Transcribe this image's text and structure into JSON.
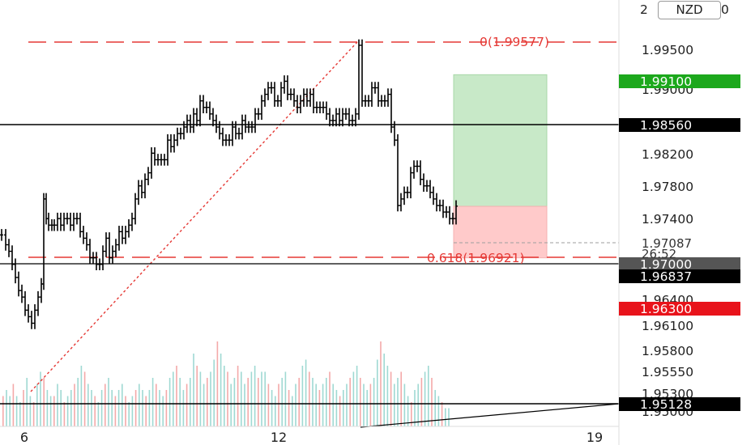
{
  "currency": "NZD",
  "y_axis": {
    "tick_labels": [
      "1.99500",
      "1.99000",
      "1.98200",
      "1.97800",
      "1.97400",
      "1.96400",
      "1.96100",
      "1.95800",
      "1.95550",
      "1.95300",
      "1.95000"
    ],
    "top_fragment_left": "2",
    "top_fragment_right": "0"
  },
  "x_axis": {
    "tick_labels": [
      "6",
      "12",
      "19"
    ]
  },
  "horizontal_levels": [
    {
      "label": "1.98560",
      "color": "#000000"
    },
    {
      "label": "1.97000",
      "color": "#555555"
    },
    {
      "label": "1.95128",
      "color": "#000000"
    }
  ],
  "badges": [
    {
      "label": "1.99100",
      "color": "#1ca81c"
    },
    {
      "label": "1.98560",
      "color": "#000000"
    },
    {
      "label": "1.97000",
      "color": "#555555"
    },
    {
      "label": "1.96837",
      "color": "#000000"
    },
    {
      "label": "1.96300",
      "color": "#e8131b"
    },
    {
      "label": "1.95128",
      "color": "#000000"
    }
  ],
  "current_price": {
    "value": "1.97087",
    "countdown": "26:52"
  },
  "fib_labels": [
    {
      "text": "0(1.99577)"
    },
    {
      "text": "0.618(1.96921)"
    }
  ],
  "position_tool": {
    "target": 1.991,
    "entry": 1.97087,
    "stop": 1.963,
    "profit_color": "#c8e9c8",
    "loss_color": "#ffcaca"
  },
  "chart_data": {
    "type": "ohlc",
    "y_range": [
      1.95,
      2.0
    ],
    "x_ticks": [
      "6",
      "12",
      "19"
    ],
    "price_series": [
      [
        0,
        1.9665
      ],
      [
        5,
        1.965
      ],
      [
        9,
        1.964
      ],
      [
        13,
        1.962
      ],
      [
        17,
        1.96
      ],
      [
        21,
        1.958
      ],
      [
        25,
        1.957
      ],
      [
        29,
        1.955
      ],
      [
        33,
        1.954
      ],
      [
        37,
        1.953
      ],
      [
        41,
        1.955
      ],
      [
        45,
        1.957
      ],
      [
        49,
        1.959
      ],
      [
        52,
        1.972
      ],
      [
        55,
        1.969
      ],
      [
        58,
        1.968
      ],
      [
        62,
        1.968
      ],
      [
        65,
        1.968
      ],
      [
        69,
        1.969
      ],
      [
        73,
        1.968
      ],
      [
        77,
        1.969
      ],
      [
        81,
        1.969
      ],
      [
        85,
        1.968
      ],
      [
        89,
        1.969
      ],
      [
        93,
        1.969
      ],
      [
        97,
        1.967
      ],
      [
        101,
        1.966
      ],
      [
        105,
        1.965
      ],
      [
        109,
        1.963
      ],
      [
        113,
        1.963
      ],
      [
        117,
        1.962
      ],
      [
        121,
        1.962
      ],
      [
        125,
        1.964
      ],
      [
        129,
        1.966
      ],
      [
        133,
        1.963
      ],
      [
        137,
        1.964
      ],
      [
        141,
        1.965
      ],
      [
        145,
        1.967
      ],
      [
        149,
        1.966
      ],
      [
        153,
        1.967
      ],
      [
        157,
        1.968
      ],
      [
        161,
        1.969
      ],
      [
        165,
        1.972
      ],
      [
        169,
        1.974
      ],
      [
        173,
        1.973
      ],
      [
        177,
        1.975
      ],
      [
        181,
        1.976
      ],
      [
        185,
        1.979
      ],
      [
        189,
        1.978
      ],
      [
        193,
        1.978
      ],
      [
        197,
        1.978
      ],
      [
        201,
        1.978
      ],
      [
        205,
        1.981
      ],
      [
        209,
        1.98
      ],
      [
        213,
        1.981
      ],
      [
        217,
        1.982
      ],
      [
        221,
        1.982
      ],
      [
        225,
        1.983
      ],
      [
        229,
        1.984
      ],
      [
        233,
        1.983
      ],
      [
        237,
        1.985
      ],
      [
        241,
        1.984
      ],
      [
        245,
        1.987
      ],
      [
        249,
        1.986
      ],
      [
        253,
        1.986
      ],
      [
        257,
        1.985
      ],
      [
        261,
        1.984
      ],
      [
        265,
        1.983
      ],
      [
        269,
        1.982
      ],
      [
        273,
        1.981
      ],
      [
        277,
        1.981
      ],
      [
        281,
        1.981
      ],
      [
        285,
        1.983
      ],
      [
        289,
        1.982
      ],
      [
        293,
        1.982
      ],
      [
        297,
        1.984
      ],
      [
        301,
        1.983
      ],
      [
        305,
        1.983
      ],
      [
        309,
        1.983
      ],
      [
        313,
        1.985
      ],
      [
        317,
        1.985
      ],
      [
        321,
        1.987
      ],
      [
        325,
        1.988
      ],
      [
        329,
        1.989
      ],
      [
        333,
        1.989
      ],
      [
        337,
        1.987
      ],
      [
        341,
        1.987
      ],
      [
        345,
        1.989
      ],
      [
        349,
        1.99
      ],
      [
        353,
        1.988
      ],
      [
        357,
        1.988
      ],
      [
        361,
        1.987
      ],
      [
        365,
        1.986
      ],
      [
        369,
        1.987
      ],
      [
        373,
        1.988
      ],
      [
        377,
        1.987
      ],
      [
        381,
        1.988
      ],
      [
        385,
        1.986
      ],
      [
        389,
        1.986
      ],
      [
        393,
        1.986
      ],
      [
        397,
        1.986
      ],
      [
        401,
        1.985
      ],
      [
        405,
        1.984
      ],
      [
        409,
        1.984
      ],
      [
        413,
        1.985
      ],
      [
        417,
        1.984
      ],
      [
        421,
        1.985
      ],
      [
        425,
        1.985
      ],
      [
        429,
        1.984
      ],
      [
        433,
        1.984
      ],
      [
        437,
        1.985
      ],
      [
        441,
        1.9955
      ],
      [
        445,
        1.987
      ],
      [
        449,
        1.987
      ],
      [
        453,
        1.987
      ],
      [
        457,
        1.989
      ],
      [
        461,
        1.989
      ],
      [
        465,
        1.987
      ],
      [
        469,
        1.987
      ],
      [
        473,
        1.987
      ],
      [
        477,
        1.988
      ],
      [
        481,
        1.983
      ],
      [
        485,
        1.981
      ],
      [
        489,
        1.971
      ],
      [
        493,
        1.972
      ],
      [
        497,
        1.973
      ],
      [
        501,
        1.973
      ],
      [
        505,
        1.976
      ],
      [
        509,
        1.977
      ],
      [
        513,
        1.977
      ],
      [
        517,
        1.975
      ],
      [
        521,
        1.974
      ],
      [
        525,
        1.974
      ],
      [
        529,
        1.973
      ],
      [
        533,
        1.972
      ],
      [
        537,
        1.971
      ],
      [
        541,
        1.971
      ],
      [
        545,
        1.97
      ],
      [
        549,
        1.97
      ],
      [
        553,
        1.969
      ],
      [
        557,
        1.969
      ],
      [
        561,
        1.9709
      ]
    ],
    "volume_series": [
      5,
      6,
      5,
      7,
      5,
      4,
      6,
      8,
      5,
      4,
      7,
      9,
      8,
      6,
      5,
      5,
      7,
      6,
      4,
      5,
      6,
      7,
      8,
      10,
      9,
      7,
      6,
      5,
      4,
      6,
      7,
      8,
      6,
      5,
      6,
      7,
      5,
      4,
      5,
      6,
      7,
      6,
      5,
      6,
      8,
      7,
      6,
      5,
      6,
      8,
      9,
      10,
      8,
      6,
      7,
      8,
      12,
      10,
      9,
      7,
      8,
      9,
      11,
      14,
      12,
      10,
      9,
      7,
      8,
      10,
      9,
      7,
      8,
      9,
      10,
      8,
      9,
      9,
      7,
      6,
      5,
      7,
      8,
      9,
      6,
      5,
      7,
      8,
      10,
      11,
      9,
      8,
      7,
      6,
      7,
      8,
      9,
      7,
      6,
      5,
      6,
      7,
      8,
      9,
      10,
      8,
      7,
      6,
      7,
      8,
      11,
      14,
      12,
      10,
      9,
      7,
      8,
      9,
      7,
      5,
      4,
      6,
      7,
      8,
      9,
      10,
      8,
      6,
      5,
      4,
      3,
      3
    ]
  }
}
